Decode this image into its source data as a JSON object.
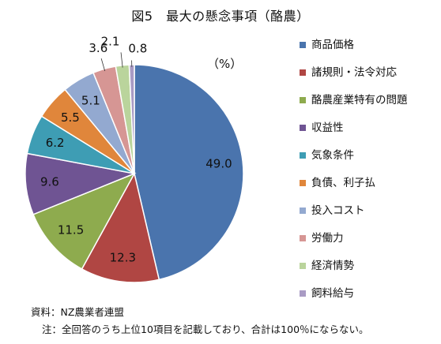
{
  "chart_data": {
    "type": "pie",
    "title": "図5　最大の懸念事項（酪農）",
    "unit": "（%）",
    "categories": [
      "商品価格",
      "諸規則・法令対応",
      "酪農産業特有の問題",
      "収益性",
      "気象条件",
      "負債、利子払",
      "投入コスト",
      "労働力",
      "経済情勢",
      "飼料給与"
    ],
    "values": [
      49.0,
      12.3,
      11.5,
      9.6,
      6.2,
      5.5,
      5.1,
      3.6,
      2.1,
      0.8
    ],
    "labels": [
      "49.0",
      "12.3",
      "11.5",
      "9.6",
      "6.2",
      "5.5",
      "5.1",
      "3.6",
      "2.1",
      "0.8"
    ],
    "colors": [
      "#4a74ad",
      "#b04643",
      "#8eab4e",
      "#6f5493",
      "#3e9db4",
      "#e0863b",
      "#93a9d0",
      "#d69694",
      "#bad49c",
      "#a99bc4"
    ],
    "legend_position": "right",
    "start_angle": "top",
    "direction": "clockwise"
  },
  "source": "資料：NZ農業者連盟",
  "note": "注：全回答のうち上位10項目を記載しており、合計は100％にならない。"
}
